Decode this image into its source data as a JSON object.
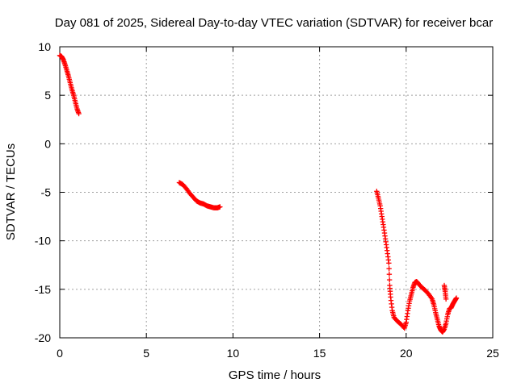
{
  "chart_data": {
    "type": "scatter",
    "title": "Day 081 of 2025, Sidereal Day-to-day VTEC variation (SDTVAR) for receiver bcar",
    "xlabel": "GPS time / hours",
    "ylabel": "SDTVAR / TECUs",
    "xlim": [
      0,
      25
    ],
    "ylim": [
      -20,
      10
    ],
    "x_ticks": [
      "0",
      "5",
      "10",
      "15",
      "20",
      "25"
    ],
    "y_ticks": [
      "10",
      "5",
      "0",
      "-5",
      "-10",
      "-15",
      "-20"
    ],
    "grid": true,
    "marker": "+",
    "color": "#ff0000",
    "series": [
      {
        "points": [
          [
            0.0,
            9.1
          ],
          [
            0.1,
            9.0
          ],
          [
            0.2,
            8.7
          ],
          [
            0.3,
            8.2
          ],
          [
            0.4,
            7.6
          ],
          [
            0.5,
            7.0
          ],
          [
            0.6,
            6.3
          ],
          [
            0.7,
            5.6
          ],
          [
            0.8,
            5.0
          ],
          [
            0.9,
            4.3
          ],
          [
            1.0,
            3.6
          ],
          [
            1.1,
            3.1
          ],
          [
            6.9,
            -4.0
          ],
          [
            7.1,
            -4.2
          ],
          [
            7.3,
            -4.6
          ],
          [
            7.5,
            -5.1
          ],
          [
            7.7,
            -5.5
          ],
          [
            7.9,
            -5.9
          ],
          [
            8.1,
            -6.1
          ],
          [
            8.3,
            -6.2
          ],
          [
            8.5,
            -6.4
          ],
          [
            8.7,
            -6.5
          ],
          [
            8.9,
            -6.6
          ],
          [
            9.1,
            -6.6
          ],
          [
            9.25,
            -6.5
          ],
          [
            18.3,
            -4.9
          ],
          [
            18.4,
            -5.6
          ],
          [
            18.5,
            -6.4
          ],
          [
            18.6,
            -7.5
          ],
          [
            18.7,
            -8.6
          ],
          [
            18.8,
            -9.8
          ],
          [
            18.9,
            -11.0
          ],
          [
            19.0,
            -12.3
          ],
          [
            19.05,
            -14.6
          ],
          [
            19.1,
            -15.8
          ],
          [
            19.2,
            -17.2
          ],
          [
            19.3,
            -17.9
          ],
          [
            19.5,
            -18.3
          ],
          [
            19.7,
            -18.6
          ],
          [
            19.9,
            -19.0
          ],
          [
            20.0,
            -18.4
          ],
          [
            20.1,
            -17.2
          ],
          [
            20.2,
            -16.2
          ],
          [
            20.3,
            -15.5
          ],
          [
            20.4,
            -14.8
          ],
          [
            20.5,
            -14.3
          ],
          [
            20.6,
            -14.2
          ],
          [
            20.7,
            -14.4
          ],
          [
            20.9,
            -14.8
          ],
          [
            21.1,
            -15.1
          ],
          [
            21.3,
            -15.5
          ],
          [
            21.5,
            -16.0
          ],
          [
            21.6,
            -16.6
          ],
          [
            21.7,
            -17.4
          ],
          [
            21.8,
            -18.1
          ],
          [
            21.9,
            -18.8
          ],
          [
            22.0,
            -19.2
          ],
          [
            22.1,
            -19.4
          ],
          [
            22.2,
            -19.1
          ],
          [
            22.3,
            -18.5
          ],
          [
            22.4,
            -17.6
          ],
          [
            22.5,
            -17.0
          ],
          [
            22.6,
            -16.9
          ],
          [
            22.7,
            -16.5
          ],
          [
            22.8,
            -16.2
          ],
          [
            22.9,
            -15.9
          ],
          [
            22.2,
            -14.6
          ],
          [
            22.25,
            -15.2
          ],
          [
            22.3,
            -16.0
          ]
        ]
      }
    ]
  }
}
